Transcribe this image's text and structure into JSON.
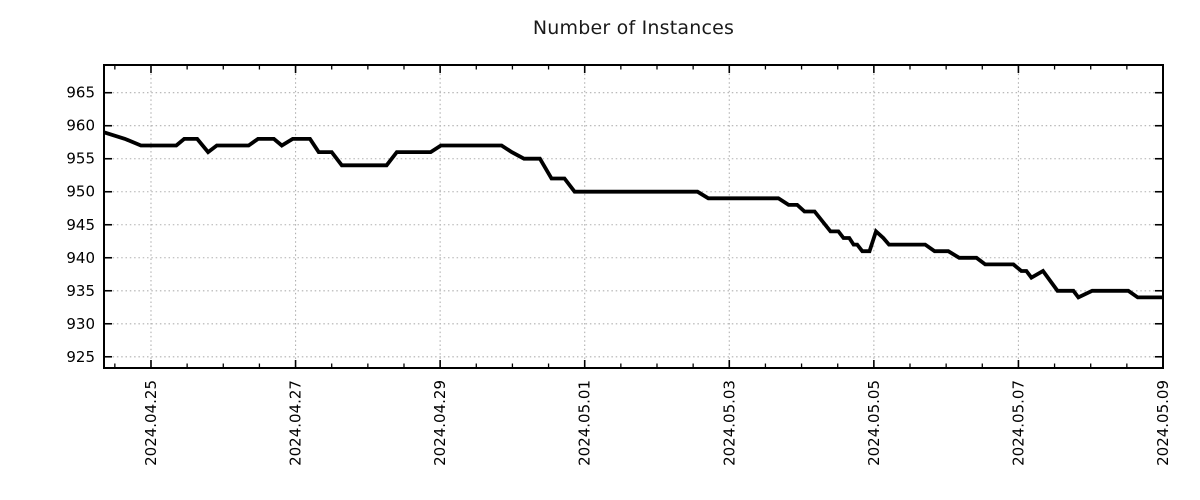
{
  "figure": {
    "title": "Number of Instances"
  },
  "chart_data": {
    "type": "line",
    "title": "Number of Instances",
    "xlabel": "",
    "ylabel": "",
    "legend": "none",
    "grid": {
      "on": true,
      "style": "dotted",
      "color": "#b0b0b0"
    },
    "frame_color": "#000000",
    "x_axis": {
      "unit": "date",
      "lim_days_from_2024_04_25": [
        -0.65,
        14
      ],
      "minor_tick_step_days": 0.5,
      "major_ticks": [
        {
          "d": 0,
          "label": "2024.04.25"
        },
        {
          "d": 2,
          "label": "2024.04.27"
        },
        {
          "d": 4,
          "label": "2024.04.29"
        },
        {
          "d": 6,
          "label": "2024.05.01"
        },
        {
          "d": 8,
          "label": "2024.05.03"
        },
        {
          "d": 10,
          "label": "2024.05.05"
        },
        {
          "d": 12,
          "label": "2024.05.07"
        },
        {
          "d": 14,
          "label": "2024.05.09"
        }
      ]
    },
    "y_axis": {
      "lim": [
        923.3,
        969.2
      ],
      "ticks": [
        925,
        930,
        935,
        940,
        945,
        950,
        955,
        960,
        965
      ]
    },
    "series": [
      {
        "name": "instances",
        "color": "#000000",
        "width": 3.8,
        "points": [
          [
            -0.65,
            959
          ],
          [
            -0.36,
            958
          ],
          [
            -0.14,
            957
          ],
          [
            0.35,
            957
          ],
          [
            0.46,
            958
          ],
          [
            0.64,
            958
          ],
          [
            0.79,
            956
          ],
          [
            0.91,
            957
          ],
          [
            1.35,
            957
          ],
          [
            1.48,
            958
          ],
          [
            1.7,
            958
          ],
          [
            1.81,
            957
          ],
          [
            1.96,
            958
          ],
          [
            2.2,
            958
          ],
          [
            2.32,
            956
          ],
          [
            2.5,
            956
          ],
          [
            2.64,
            954
          ],
          [
            3.26,
            954
          ],
          [
            3.4,
            956
          ],
          [
            3.87,
            956
          ],
          [
            4.01,
            957
          ],
          [
            4.85,
            957
          ],
          [
            4.99,
            956
          ],
          [
            5.16,
            955
          ],
          [
            5.38,
            955
          ],
          [
            5.54,
            952
          ],
          [
            5.72,
            952
          ],
          [
            5.86,
            950
          ],
          [
            7.56,
            950
          ],
          [
            7.71,
            949
          ],
          [
            8.68,
            949
          ],
          [
            8.82,
            948
          ],
          [
            8.94,
            948
          ],
          [
            9.04,
            947
          ],
          [
            9.18,
            947
          ],
          [
            9.4,
            944
          ],
          [
            9.51,
            944
          ],
          [
            9.58,
            943
          ],
          [
            9.66,
            943
          ],
          [
            9.72,
            942
          ],
          [
            9.77,
            942
          ],
          [
            9.84,
            941
          ],
          [
            9.94,
            941
          ],
          [
            10.03,
            944
          ],
          [
            10.13,
            943
          ],
          [
            10.21,
            942
          ],
          [
            10.71,
            942
          ],
          [
            10.84,
            941
          ],
          [
            11.03,
            941
          ],
          [
            11.18,
            940
          ],
          [
            11.42,
            940
          ],
          [
            11.54,
            939
          ],
          [
            11.93,
            939
          ],
          [
            12.04,
            938
          ],
          [
            12.11,
            938
          ],
          [
            12.18,
            937
          ],
          [
            12.34,
            938
          ],
          [
            12.54,
            935
          ],
          [
            12.76,
            935
          ],
          [
            12.83,
            934
          ],
          [
            13.02,
            935
          ],
          [
            13.52,
            935
          ],
          [
            13.65,
            934
          ],
          [
            14.0,
            934
          ]
        ]
      }
    ]
  }
}
